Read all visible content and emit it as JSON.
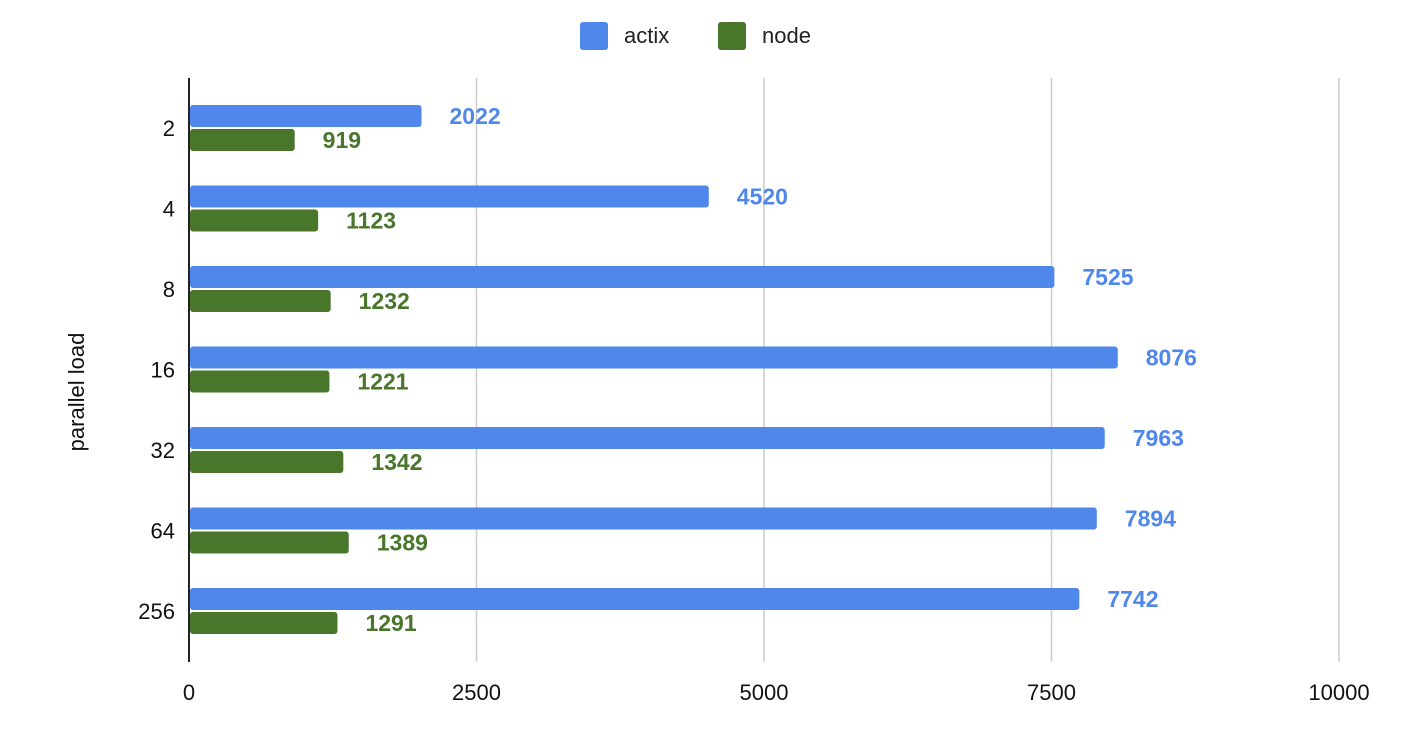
{
  "chart_data": {
    "type": "bar",
    "orientation": "horizontal",
    "title": "",
    "xlabel": "",
    "ylabel": "parallel load",
    "categories": [
      "2",
      "4",
      "8",
      "16",
      "32",
      "64",
      "256"
    ],
    "series": [
      {
        "name": "actix",
        "color": "#4f87ea",
        "values": [
          2022,
          4520,
          7525,
          8076,
          7963,
          7894,
          7742
        ]
      },
      {
        "name": "node",
        "color": "#48762b",
        "values": [
          919,
          1123,
          1232,
          1221,
          1342,
          1389,
          1291
        ]
      }
    ],
    "xlim": [
      0,
      10000
    ],
    "xticks": [
      0,
      2500,
      5000,
      7500,
      10000
    ],
    "grid": true,
    "legend_position": "top-center",
    "data_labels": true
  }
}
